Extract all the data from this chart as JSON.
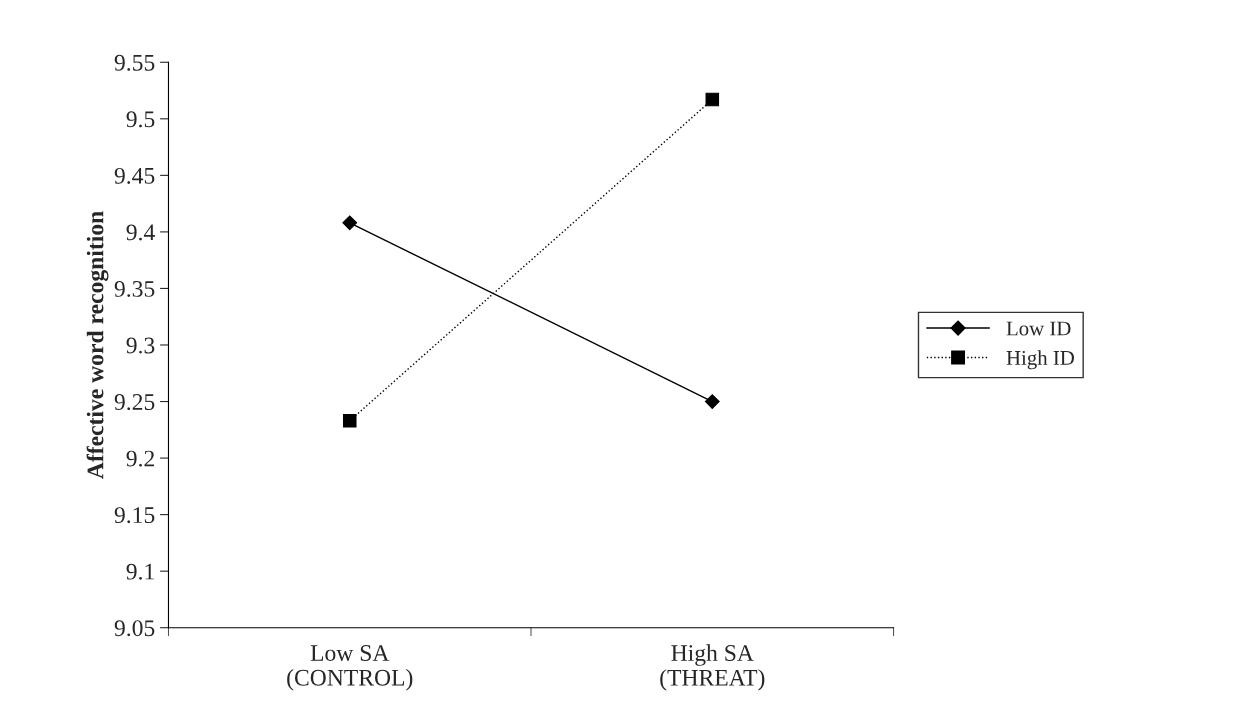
{
  "chart_data": {
    "type": "line",
    "ylabel": "Affective word recognition",
    "categories": [
      "Low SA\n(CONTROL)",
      "High SA\n(THREAT)"
    ],
    "series": [
      {
        "name": "Low ID",
        "color": "#000000",
        "values": [
          9.408,
          9.25
        ],
        "marker": "diamond",
        "line_style": "solid"
      },
      {
        "name": "High ID",
        "color": "#000000",
        "values": [
          9.233,
          9.517
        ],
        "marker": "square",
        "line_style": "dotted"
      }
    ],
    "ylim": [
      9.05,
      9.55
    ],
    "yticks": [
      9.05,
      9.1,
      9.15,
      9.2,
      9.25,
      9.3,
      9.35,
      9.4,
      9.45,
      9.5,
      9.55
    ],
    "legend": "right",
    "grid": false
  }
}
